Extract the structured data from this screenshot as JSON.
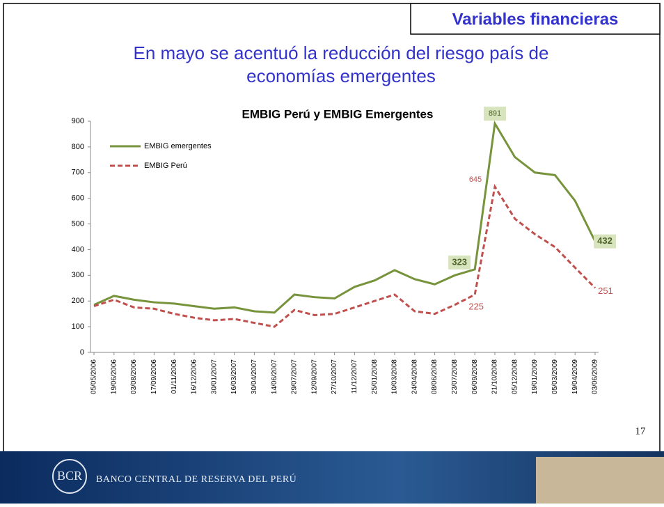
{
  "slide": {
    "section": "Variables financieras",
    "headline": "En mayo se acentuó la reducción del riesgo país de economías emergentes",
    "page_number": 17,
    "footer": "BANCO CENTRAL DE RESERVA DEL PERÚ"
  },
  "chart_data": {
    "type": "line",
    "title": "EMBIG Perú y EMBIG Emergentes",
    "x": [
      "05/05/2006",
      "19/06/2006",
      "03/08/2006",
      "17/09/2006",
      "01/11/2006",
      "16/12/2006",
      "30/01/2007",
      "16/03/2007",
      "30/04/2007",
      "14/06/2007",
      "29/07/2007",
      "12/09/2007",
      "27/10/2007",
      "11/12/2007",
      "25/01/2008",
      "10/03/2008",
      "24/04/2008",
      "08/06/2008",
      "23/07/2008",
      "06/09/2008",
      "21/10/2008",
      "05/12/2008",
      "19/01/2009",
      "05/03/2009",
      "19/04/2009",
      "03/06/2009"
    ],
    "series": [
      {
        "name": "EMBIG emergentes",
        "color": "#77933c",
        "dash": false,
        "values": [
          185,
          220,
          205,
          195,
          190,
          180,
          170,
          175,
          160,
          155,
          225,
          215,
          210,
          255,
          280,
          320,
          285,
          265,
          300,
          323,
          891,
          760,
          700,
          690,
          590,
          432
        ]
      },
      {
        "name": "EMBIG Perú",
        "color": "#c0504d",
        "dash": true,
        "values": [
          180,
          205,
          175,
          170,
          150,
          135,
          125,
          130,
          115,
          100,
          165,
          145,
          150,
          175,
          200,
          225,
          160,
          150,
          185,
          225,
          645,
          520,
          460,
          410,
          330,
          251
        ]
      }
    ],
    "ylim": [
      0,
      900
    ],
    "yticks": [
      0,
      100,
      200,
      300,
      400,
      500,
      600,
      700,
      800,
      900
    ],
    "grid": false,
    "legend": "top-left"
  }
}
